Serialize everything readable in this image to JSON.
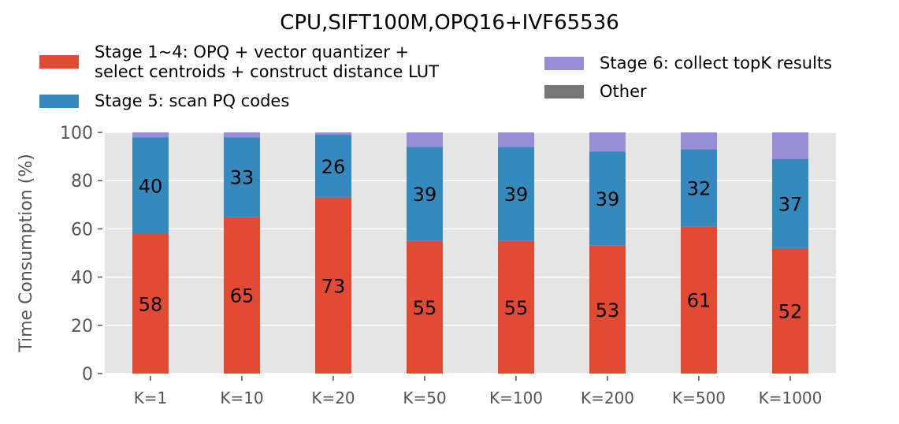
{
  "chart_data": {
    "type": "bar",
    "stacked": true,
    "title": "CPU,SIFT100M,OPQ16+IVF65536",
    "xlabel": "",
    "ylabel": "Time Consumption (%)",
    "ylim": [
      0,
      100
    ],
    "yticks": [
      "0",
      "20",
      "40",
      "60",
      "80",
      "100"
    ],
    "grid": true,
    "legend_position": "top",
    "categories": [
      "K=1",
      "K=10",
      "K=20",
      "K=50",
      "K=100",
      "K=200",
      "K=500",
      "K=1000"
    ],
    "series": [
      {
        "name": "Stage 1~4: OPQ + vector quantizer +\nselect centroids + construct distance LUT",
        "color": "#E24A33",
        "values": [
          58,
          65,
          73,
          55,
          55,
          53,
          61,
          52
        ],
        "labels": [
          "58",
          "65",
          "73",
          "55",
          "55",
          "53",
          "61",
          "52"
        ]
      },
      {
        "name": "Stage 5: scan PQ codes",
        "color": "#348ABD",
        "values": [
          40,
          33,
          26,
          39,
          39,
          39,
          32,
          37
        ],
        "labels": [
          "40",
          "33",
          "26",
          "39",
          "39",
          "39",
          "32",
          "37"
        ]
      },
      {
        "name": "Stage 6: collect topK results",
        "color": "#988ED5",
        "values": [
          2,
          2,
          1,
          6,
          6,
          8,
          7,
          11
        ]
      },
      {
        "name": "Other",
        "color": "#777777",
        "values": [
          0,
          0,
          0,
          0,
          0,
          0,
          0,
          0
        ]
      }
    ]
  },
  "colors": {
    "plot_background": "#E5E5E5",
    "grid": "#FFFFFF"
  }
}
